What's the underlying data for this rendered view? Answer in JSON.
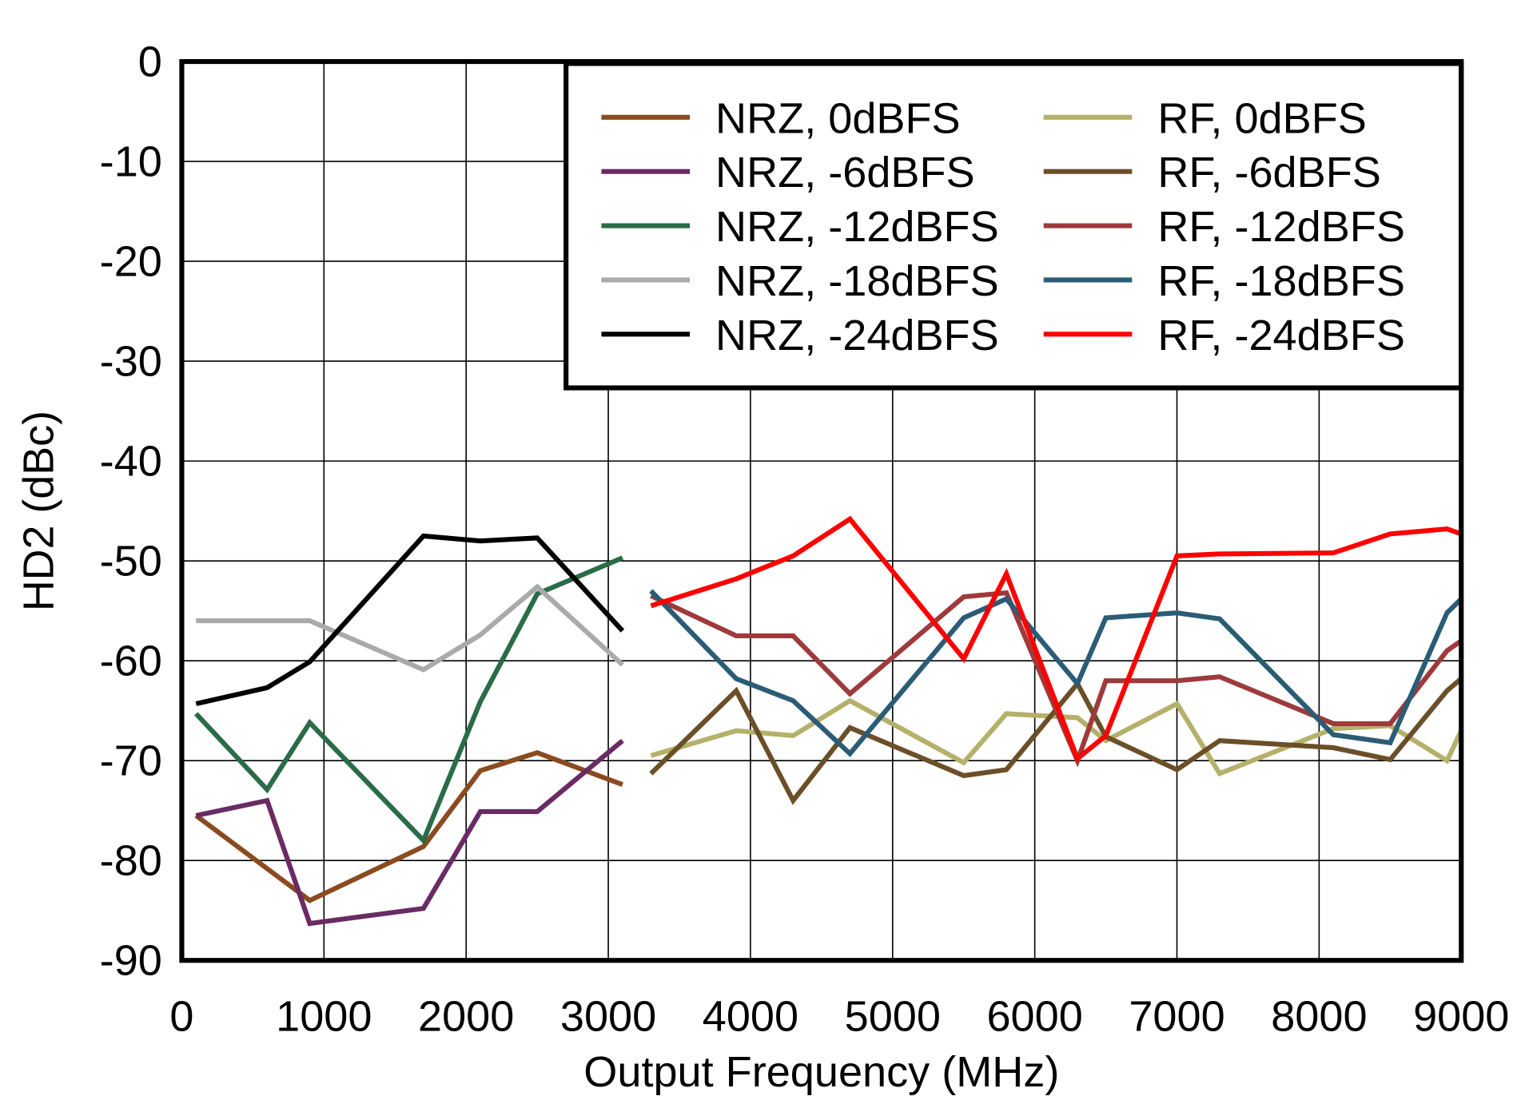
{
  "chart_data": {
    "type": "line",
    "title": "",
    "xlabel": "Output Frequency (MHz)",
    "ylabel": "HD2 (dBc)",
    "xlim": [
      0,
      9000
    ],
    "ylim": [
      -90,
      0
    ],
    "xticks": [
      0,
      1000,
      2000,
      3000,
      4000,
      5000,
      6000,
      7000,
      8000,
      9000
    ],
    "yticks": [
      0,
      -10,
      -20,
      -30,
      -40,
      -50,
      -60,
      -70,
      -80,
      -90
    ],
    "grid": true,
    "legend_placement": "top-right",
    "series": [
      {
        "name": "NRZ, 0dBFS",
        "color": "#8A4B20",
        "x": [
          100,
          900,
          1700,
          2100,
          2500,
          3100
        ],
        "y": [
          -75.5,
          -84,
          -78.6,
          -71,
          -69.2,
          -72.4
        ]
      },
      {
        "name": "NRZ, -6dBFS",
        "color": "#6A2B64",
        "x": [
          100,
          600,
          900,
          1700,
          2100,
          2500,
          3100
        ],
        "y": [
          -75.5,
          -74,
          -86.3,
          -84.8,
          -75.1,
          -75.1,
          -68
        ]
      },
      {
        "name": "NRZ, -12dBFS",
        "color": "#2A6B48",
        "x": [
          100,
          600,
          900,
          1700,
          2100,
          2500,
          3100
        ],
        "y": [
          -65.3,
          -72.9,
          -66.2,
          -78,
          -64.1,
          -53.3,
          -49.7
        ]
      },
      {
        "name": "NRZ, -18dBFS",
        "color": "#AAAAAA",
        "x": [
          100,
          900,
          1700,
          2100,
          2500,
          3100
        ],
        "y": [
          -56,
          -56,
          -60.9,
          -57.4,
          -52.6,
          -60.4
        ]
      },
      {
        "name": "NRZ, -24dBFS",
        "color": "#000000",
        "x": [
          100,
          600,
          900,
          1700,
          2100,
          2500,
          3100
        ],
        "y": [
          -64.3,
          -62.7,
          -60.1,
          -47.5,
          -48,
          -47.7,
          -57
        ]
      },
      {
        "name": "RF, 0dBFS",
        "color": "#B5B06A",
        "x": [
          3300,
          3900,
          4300,
          4700,
          5500,
          5800,
          6300,
          6500,
          7000,
          7300,
          8100,
          8500,
          8900,
          9000
        ],
        "y": [
          -69.5,
          -67,
          -67.5,
          -64,
          -70.2,
          -65.3,
          -65.7,
          -68,
          -64.3,
          -71.3,
          -66.8,
          -66.5,
          -70,
          -67
        ]
      },
      {
        "name": "RF, -6dBFS",
        "color": "#6B4F28",
        "x": [
          3300,
          3900,
          4300,
          4700,
          5500,
          5800,
          6300,
          6500,
          7000,
          7300,
          8100,
          8500,
          8900,
          9000
        ],
        "y": [
          -71.3,
          -63,
          -74,
          -66.7,
          -71.5,
          -70.9,
          -62.3,
          -67.6,
          -70.9,
          -68,
          -68.7,
          -69.9,
          -63,
          -61.8
        ]
      },
      {
        "name": "RF, -12dBFS",
        "color": "#9E3A3C",
        "x": [
          3300,
          3900,
          4300,
          4700,
          5500,
          5800,
          6300,
          6500,
          7000,
          7300,
          8100,
          8500,
          8900,
          9000
        ],
        "y": [
          -53.5,
          -57.5,
          -57.5,
          -63.3,
          -53.6,
          -53.2,
          -70,
          -62,
          -62,
          -61.6,
          -66.3,
          -66.3,
          -59,
          -58
        ]
      },
      {
        "name": "RF, -18dBFS",
        "color": "#2A5C75",
        "x": [
          3300,
          3900,
          4300,
          4700,
          5500,
          5800,
          6300,
          6500,
          7000,
          7300,
          8100,
          8500,
          8900,
          9000
        ],
        "y": [
          -53,
          -61.8,
          -64,
          -69.3,
          -55.7,
          -53.8,
          -62.3,
          -55.7,
          -55.2,
          -55.8,
          -67.4,
          -68.2,
          -55.2,
          -53.8
        ]
      },
      {
        "name": "RF, -24dBFS",
        "color": "#FF0000",
        "x": [
          3300,
          3900,
          4300,
          4700,
          5500,
          5800,
          6300,
          6500,
          7000,
          7300,
          8100,
          8500,
          8900,
          9000
        ],
        "y": [
          -54.5,
          -51.8,
          -49.5,
          -45.8,
          -59.8,
          -51.3,
          -69.8,
          -67.5,
          -49.5,
          -49.3,
          -49.2,
          -47.3,
          -46.8,
          -47.3
        ]
      }
    ]
  }
}
